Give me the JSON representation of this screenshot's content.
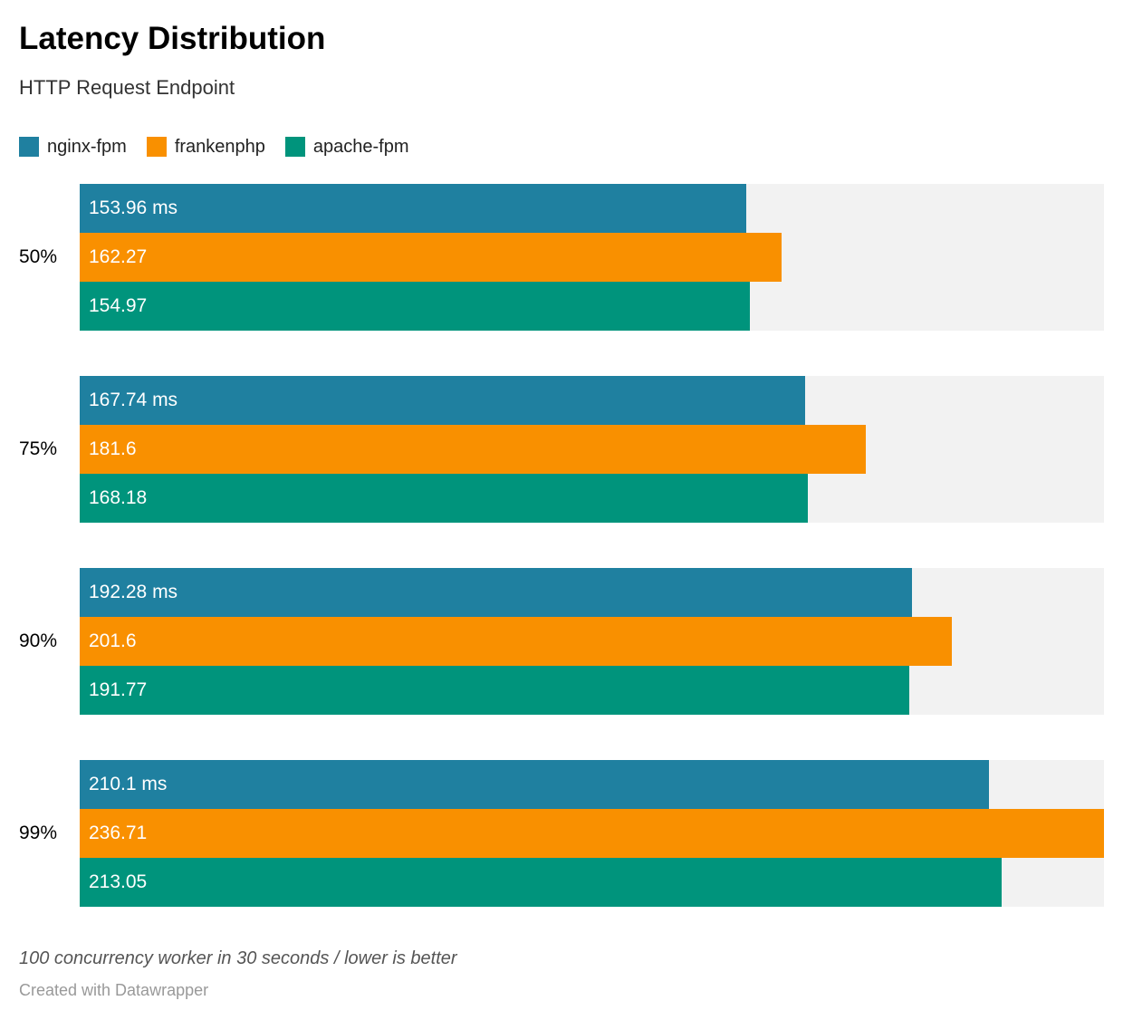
{
  "header": {
    "title": "Latency Distribution",
    "subtitle": "HTTP Request Endpoint"
  },
  "legend": [
    {
      "label": "nginx-fpm",
      "color": "#1f80a0"
    },
    {
      "label": "frankenphp",
      "color": "#f99000"
    },
    {
      "label": "apache-fpm",
      "color": "#00947c"
    }
  ],
  "footer": {
    "note": "100 concurrency worker in 30 seconds / lower is better",
    "attribution": "Created with Datawrapper"
  },
  "chart_data": {
    "type": "bar",
    "orientation": "horizontal",
    "title": "Latency Distribution",
    "subtitle": "HTTP Request Endpoint",
    "note": "100 concurrency worker in 30 seconds / lower is better",
    "unit": "ms",
    "categories": [
      "50%",
      "75%",
      "90%",
      "99%"
    ],
    "series": [
      {
        "name": "nginx-fpm",
        "color": "#1f80a0",
        "values": [
          153.96,
          167.74,
          192.28,
          210.1
        ],
        "labels": [
          "153.96 ms",
          "167.74 ms",
          "192.28 ms",
          "210.1 ms"
        ]
      },
      {
        "name": "frankenphp",
        "color": "#f99000",
        "values": [
          162.27,
          181.6,
          201.6,
          236.71
        ],
        "labels": [
          "162.27",
          "181.6",
          "201.6",
          "236.71"
        ]
      },
      {
        "name": "apache-fpm",
        "color": "#00947c",
        "values": [
          154.97,
          168.18,
          191.77,
          213.05
        ],
        "labels": [
          "154.97",
          "168.18",
          "191.77",
          "213.05"
        ]
      }
    ],
    "xmax": 236.71,
    "grid": false,
    "legend_position": "top",
    "track_color": "#f2f2f2"
  }
}
